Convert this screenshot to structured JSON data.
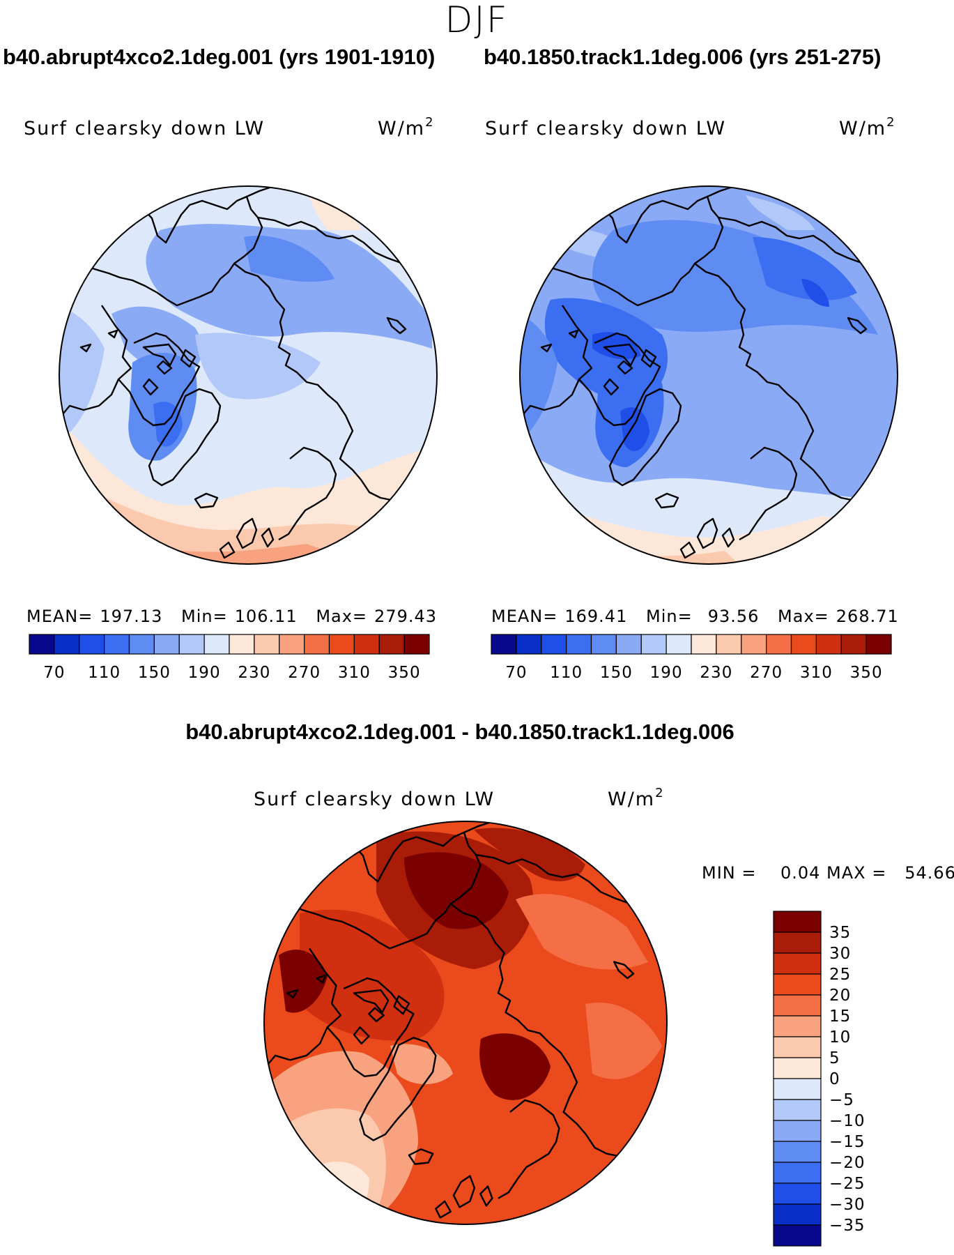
{
  "season": "DJF",
  "colors": {
    "scale": [
      "#08088c",
      "#0a2fc8",
      "#1f4fe8",
      "#3b6ef0",
      "#5f8cf3",
      "#8aaaf5",
      "#b2c8f8",
      "#dde9fb",
      "#fde7d8",
      "#fbc9ad",
      "#f8a27f",
      "#f46f45",
      "#ea4a1c",
      "#d03010",
      "#a81c08",
      "#7b0000"
    ],
    "coast": "#000000"
  },
  "panels": [
    {
      "case_title": "b40.abrupt4xco2.1deg.001 (yrs 1901-1910)",
      "variable": "Surf clearsky down LW",
      "units": "W/m",
      "units_exp": "2",
      "mean_label": "MEAN=",
      "mean": "197.13",
      "min_label": "Min=",
      "min": "106.11",
      "max_label": "Max=",
      "max": "279.43",
      "field": "ctl4x"
    },
    {
      "case_title": "b40.1850.track1.1deg.006 (yrs 251-275)",
      "variable": "Surf clearsky down LW",
      "units": "W/m",
      "units_exp": "2",
      "mean_label": "MEAN=",
      "mean": "169.41",
      "min_label": "Min=",
      "min": "93.56",
      "max_label": "Max=",
      "max": "268.71",
      "field": "ctl"
    }
  ],
  "colorbar_top": {
    "levels": [
      70,
      90,
      110,
      130,
      150,
      170,
      190,
      210,
      230,
      250,
      270,
      290,
      310,
      330,
      350
    ],
    "tick_labels": [
      "70",
      "110",
      "150",
      "190",
      "230",
      "270",
      "310",
      "350"
    ]
  },
  "diff": {
    "title": "b40.abrupt4xco2.1deg.001 - b40.1850.track1.1deg.006",
    "variable": "Surf clearsky down LW",
    "units": "W/m",
    "units_exp": "2",
    "stats": "MIN =    0.04 MAX =   54.66",
    "levels": [
      "35",
      "30",
      "25",
      "20",
      "15",
      "10",
      "5",
      "0",
      "−5",
      "−10",
      "−15",
      "−20",
      "−25",
      "−30",
      "−35"
    ]
  },
  "chart_data": [
    {
      "type": "heatmap",
      "projection": "north polar stereographic",
      "title": "b40.abrupt4xco2.1deg.001 (yrs 1901-1910)",
      "variable": "Surf clearsky down LW",
      "units": "W/m2",
      "mean": 197.13,
      "min": 106.11,
      "max": 279.43,
      "levels": [
        70,
        90,
        110,
        130,
        150,
        170,
        190,
        210,
        230,
        250,
        270,
        290,
        310,
        330,
        350
      ]
    },
    {
      "type": "heatmap",
      "projection": "north polar stereographic",
      "title": "b40.1850.track1.1deg.006 (yrs 251-275)",
      "variable": "Surf clearsky down LW",
      "units": "W/m2",
      "mean": 169.41,
      "min": 93.56,
      "max": 268.71,
      "levels": [
        70,
        90,
        110,
        130,
        150,
        170,
        190,
        210,
        230,
        250,
        270,
        290,
        310,
        330,
        350
      ]
    },
    {
      "type": "heatmap",
      "projection": "north polar stereographic",
      "title": "b40.abrupt4xco2.1deg.001 - b40.1850.track1.1deg.006",
      "variable": "Surf clearsky down LW",
      "units": "W/m2",
      "min": 0.04,
      "max": 54.66,
      "levels": [
        -35,
        -30,
        -25,
        -20,
        -15,
        -10,
        -5,
        0,
        5,
        10,
        15,
        20,
        25,
        30,
        35
      ]
    }
  ]
}
